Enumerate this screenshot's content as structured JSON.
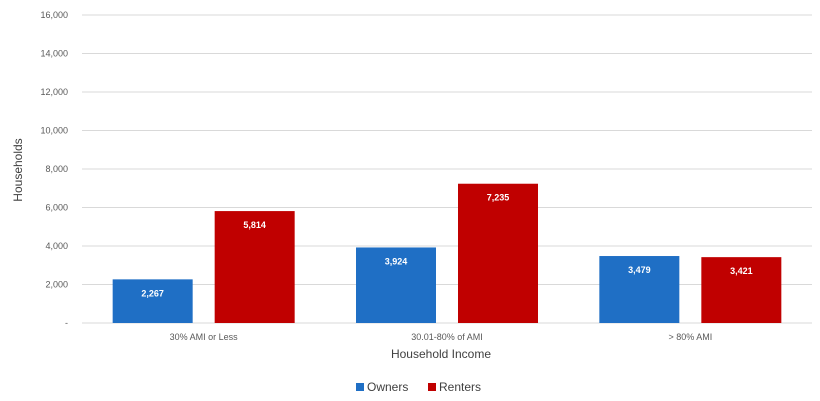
{
  "chart_data": {
    "type": "bar",
    "categories": [
      "30% AMI or Less",
      "30.01-80% of AMI",
      "> 80% AMI"
    ],
    "series": [
      {
        "name": "Owners",
        "values": [
          2267,
          3924,
          3479
        ],
        "labels": [
          "2,267",
          "3,924",
          "3,479"
        ],
        "color": "#1f6fc5"
      },
      {
        "name": "Renters",
        "values": [
          5814,
          7235,
          3421
        ],
        "labels": [
          "5,814",
          "7,235",
          "3,421"
        ],
        "color": "#c00000"
      }
    ],
    "yticks": [
      {
        "value": 0,
        "label": "-"
      },
      {
        "value": 2000,
        "label": "2,000"
      },
      {
        "value": 4000,
        "label": "4,000"
      },
      {
        "value": 6000,
        "label": "6,000"
      },
      {
        "value": 8000,
        "label": "8,000"
      },
      {
        "value": 10000,
        "label": "10,000"
      },
      {
        "value": 12000,
        "label": "12,000"
      },
      {
        "value": 14000,
        "label": "14,000"
      },
      {
        "value": 16000,
        "label": "16,000"
      }
    ],
    "ylim": [
      0,
      16000
    ],
    "xlabel": "Household Income",
    "ylabel": "Households",
    "grid": true,
    "legend_position": "bottom"
  }
}
